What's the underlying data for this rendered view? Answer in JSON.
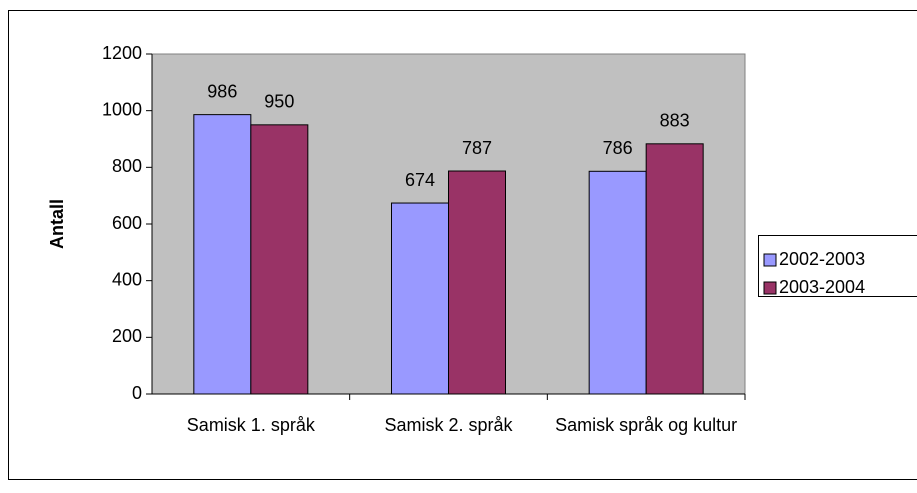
{
  "chart_data": {
    "type": "bar",
    "y_label": "Antall",
    "categories": [
      "Samisk 1. språk",
      "Samisk 2. språk",
      "Samisk språk og kultur"
    ],
    "series": [
      {
        "name": "2002-2003",
        "color": "#9999ff",
        "values": [
          986,
          674,
          786
        ]
      },
      {
        "name": "2003-2004",
        "color": "#993366",
        "values": [
          950,
          787,
          883
        ]
      }
    ],
    "ylim": [
      0,
      1200
    ],
    "yticks": [
      0,
      200,
      400,
      600,
      800,
      1000,
      1200
    ],
    "grid": false,
    "legend": "right",
    "plot_background": "#c0c0c0"
  }
}
